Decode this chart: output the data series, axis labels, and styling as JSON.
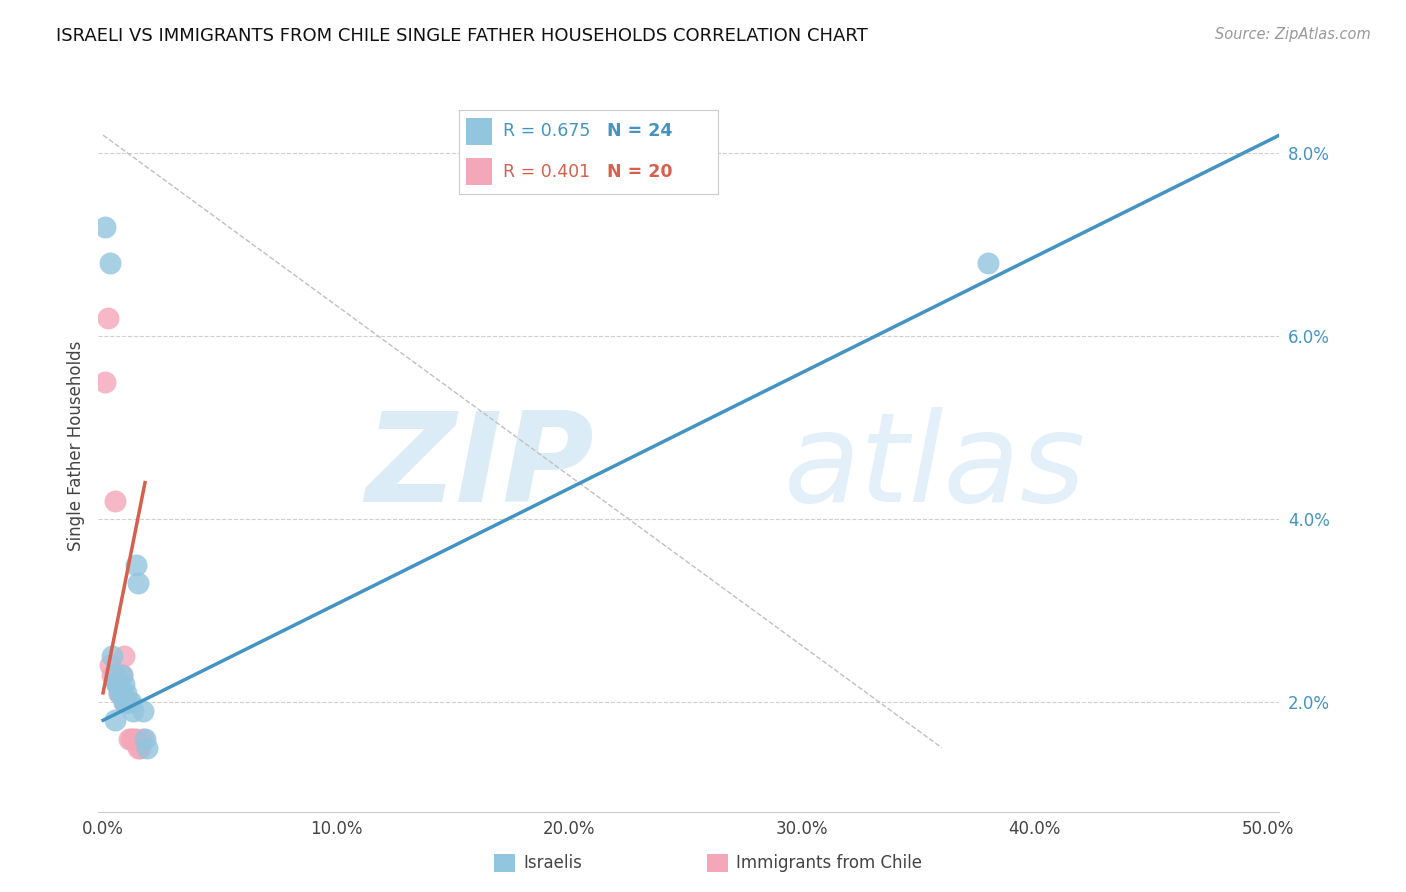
{
  "title": "ISRAELI VS IMMIGRANTS FROM CHILE SINGLE FATHER HOUSEHOLDS CORRELATION CHART",
  "source": "Source: ZipAtlas.com",
  "ylabel": "Single Father Households",
  "legend_label1": "Israelis",
  "legend_label2": "Immigrants from Chile",
  "R1": 0.675,
  "N1": 24,
  "R2": 0.401,
  "N2": 20,
  "xlim": [
    -0.002,
    0.505
  ],
  "ylim": [
    0.008,
    0.088
  ],
  "yticks": [
    0.02,
    0.04,
    0.06,
    0.08
  ],
  "ytick_labels": [
    "2.0%",
    "4.0%",
    "6.0%",
    "8.0%"
  ],
  "xticks": [
    0.0,
    0.1,
    0.2,
    0.3,
    0.4,
    0.5
  ],
  "xtick_labels": [
    "0.0%",
    "10.0%",
    "20.0%",
    "30.0%",
    "40.0%",
    "50.0%"
  ],
  "color_blue": "#92c5de",
  "color_pink": "#f4a7b9",
  "line_blue": "#4393c3",
  "line_pink": "#d6604d",
  "watermark_zip": "ZIP",
  "watermark_atlas": "atlas",
  "scatter_blue": [
    [
      0.001,
      0.072
    ],
    [
      0.003,
      0.068
    ],
    [
      0.004,
      0.025
    ],
    [
      0.005,
      0.023
    ],
    [
      0.006,
      0.022
    ],
    [
      0.006,
      0.022
    ],
    [
      0.007,
      0.021
    ],
    [
      0.007,
      0.022
    ],
    [
      0.008,
      0.021
    ],
    [
      0.008,
      0.023
    ],
    [
      0.009,
      0.02
    ],
    [
      0.009,
      0.022
    ],
    [
      0.01,
      0.021
    ],
    [
      0.01,
      0.02
    ],
    [
      0.011,
      0.02
    ],
    [
      0.012,
      0.02
    ],
    [
      0.013,
      0.019
    ],
    [
      0.014,
      0.035
    ],
    [
      0.015,
      0.033
    ],
    [
      0.017,
      0.019
    ],
    [
      0.018,
      0.016
    ],
    [
      0.019,
      0.015
    ],
    [
      0.38,
      0.068
    ],
    [
      0.005,
      0.018
    ]
  ],
  "scatter_pink": [
    [
      0.001,
      0.055
    ],
    [
      0.002,
      0.062
    ],
    [
      0.003,
      0.024
    ],
    [
      0.004,
      0.023
    ],
    [
      0.005,
      0.042
    ],
    [
      0.006,
      0.022
    ],
    [
      0.006,
      0.022
    ],
    [
      0.007,
      0.021
    ],
    [
      0.008,
      0.021
    ],
    [
      0.008,
      0.023
    ],
    [
      0.009,
      0.025
    ],
    [
      0.009,
      0.02
    ],
    [
      0.01,
      0.02
    ],
    [
      0.011,
      0.016
    ],
    [
      0.012,
      0.016
    ],
    [
      0.013,
      0.016
    ],
    [
      0.014,
      0.016
    ],
    [
      0.015,
      0.015
    ],
    [
      0.016,
      0.015
    ],
    [
      0.017,
      0.016
    ]
  ],
  "blue_line_x": [
    0.0,
    0.505
  ],
  "blue_line_y": [
    0.018,
    0.082
  ],
  "pink_line_x": [
    0.0,
    0.018
  ],
  "pink_line_y": [
    0.021,
    0.044
  ],
  "diag_line_x": [
    0.0,
    0.36
  ],
  "diag_line_y": [
    0.082,
    0.015
  ],
  "background_color": "#ffffff",
  "grid_color": "#d0d0d0"
}
